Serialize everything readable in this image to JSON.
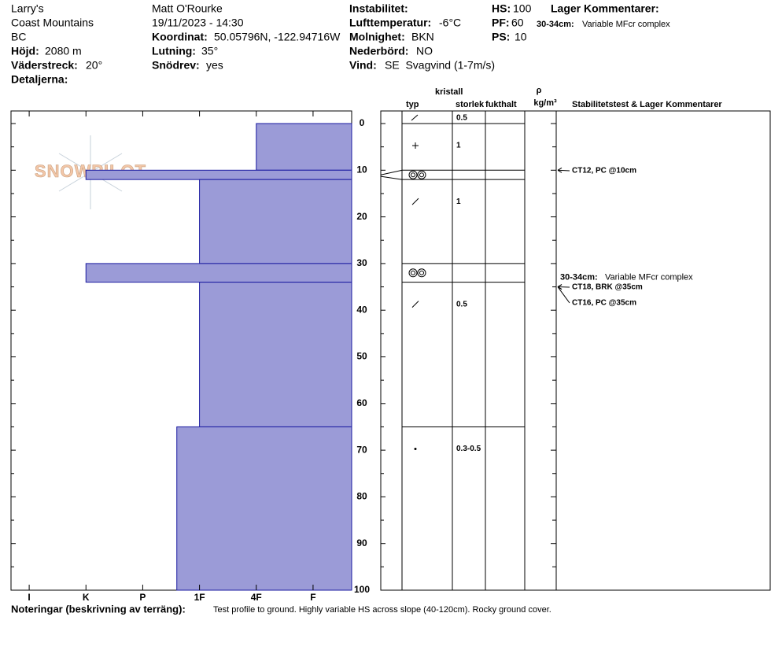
{
  "header": {
    "place": "Larry's",
    "range": "Coast Mountains",
    "region": "BC",
    "elevation": {
      "label": "Höjd:",
      "value": "2080 m"
    },
    "aspect": {
      "label": "Väderstreck:",
      "value": "20°"
    },
    "details": {
      "label": "Detaljerna:"
    },
    "observer": "Matt O'Rourke",
    "datetime": "19/11/2023 - 14:30",
    "coords": {
      "label": "Koordinat:",
      "value": "50.05796N, -122.94716W"
    },
    "slope": {
      "label": "Lutning:",
      "value": "35°"
    },
    "drift": {
      "label": "Snödrev:",
      "value": "yes"
    },
    "instability": {
      "label": "Instabilitet:"
    },
    "air_temp": {
      "label": "Lufttemperatur:",
      "value": "-6°C"
    },
    "sky": {
      "label": "Molnighet:",
      "value": "BKN"
    },
    "precip": {
      "label": "Nederbörd:",
      "value": "NO"
    },
    "wind": {
      "label": "Vind:",
      "value": "SE  Svagvind (1-7m/s)"
    },
    "hs": {
      "label": "HS:",
      "value": "100"
    },
    "pf": {
      "label": "PF:",
      "value": "60"
    },
    "ps": {
      "label": "PS:",
      "value": "10"
    },
    "layer_comments_title": "Lager Kommentarer:",
    "layer_comment": {
      "range": "30-34cm:",
      "text": "Variable MFcr complex"
    }
  },
  "watermark": "SNOWPILOT",
  "columns": {
    "type": "typ",
    "crystal": "kristall",
    "size": "storlek",
    "moisture": "fukthalt",
    "rho": "ρ",
    "density": "kg/m³",
    "stability": "Stabilitetstest & Lager Kommentarer"
  },
  "chart_data": {
    "type": "snow-profile",
    "color": "#9b9bd7",
    "ylim": [
      0,
      100
    ],
    "yticks": [
      0,
      10,
      20,
      30,
      40,
      50,
      60,
      70,
      80,
      90,
      100
    ],
    "xlim": [
      6.32,
      0.32
    ],
    "xticks": [
      {
        "value": 6,
        "label": "I"
      },
      {
        "value": 5,
        "label": "K"
      },
      {
        "value": 4,
        "label": "P"
      },
      {
        "value": 3,
        "label": "1F"
      },
      {
        "value": 2,
        "label": "4F"
      },
      {
        "value": 1,
        "label": "F"
      }
    ],
    "surface_size": "0.5",
    "layers": [
      {
        "top": 0,
        "bottom": 10,
        "hardness": 2,
        "size": "1"
      },
      {
        "top": 10,
        "bottom": 12,
        "hardness": 5
      },
      {
        "top": 12,
        "bottom": 30,
        "hardness": 3,
        "size": "1"
      },
      {
        "top": 30,
        "bottom": 34,
        "hardness": 5
      },
      {
        "top": 34,
        "bottom": 65,
        "hardness": 3,
        "size": "0.5"
      },
      {
        "top": 65,
        "bottom": 100,
        "hardness": 3.4,
        "size": "0.3-0.5"
      }
    ],
    "tests": [
      {
        "depth": 10,
        "text": "CT12, PC @10cm"
      },
      {
        "depth": 35,
        "text": "CT18, BRK @35cm"
      },
      {
        "depth": 35,
        "text": "CT16, PC @35cm"
      }
    ],
    "comments": [
      {
        "depth": 34,
        "range": "30-34cm:",
        "text": "Variable MFcr complex"
      }
    ]
  },
  "notes": {
    "label": "Noteringar (beskrivning av terräng):",
    "text": "Test profile to ground. Highly variable HS across slope (40-120cm). Rocky ground cover."
  }
}
